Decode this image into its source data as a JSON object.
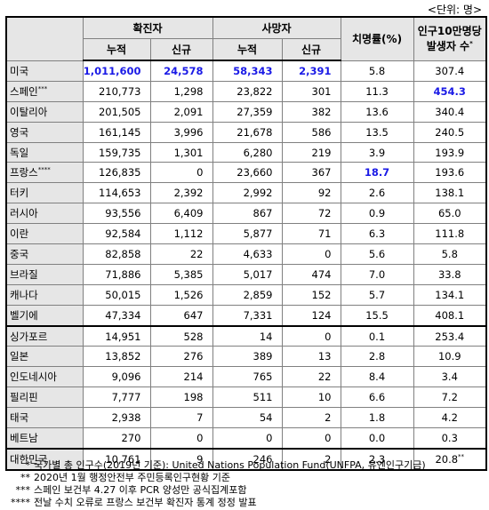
{
  "unit_label": "<단위: 명>",
  "headers": {
    "country": "",
    "confirmed": "확진자",
    "deaths": "사망자",
    "cfr": "치명률(%)",
    "per100k_line1": "인구10만명당",
    "per100k_line2": "발생자 수",
    "per100k_mark": "*",
    "cumulative": "누적",
    "new": "신규"
  },
  "rows": [
    {
      "country": "미국",
      "mark": "",
      "conf_cum": "1,011,600",
      "conf_new": "24,578",
      "death_cum": "58,343",
      "death_new": "2,391",
      "cfr": "5.8",
      "per100k": "307.4",
      "per100k_mark": ""
    },
    {
      "country": "스페인",
      "mark": "***",
      "conf_cum": "210,773",
      "conf_new": "1,298",
      "death_cum": "23,822",
      "death_new": "301",
      "cfr": "11.3",
      "per100k": "454.3",
      "per100k_mark": ""
    },
    {
      "country": "이탈리아",
      "mark": "",
      "conf_cum": "201,505",
      "conf_new": "2,091",
      "death_cum": "27,359",
      "death_new": "382",
      "cfr": "13.6",
      "per100k": "340.4",
      "per100k_mark": ""
    },
    {
      "country": "영국",
      "mark": "",
      "conf_cum": "161,145",
      "conf_new": "3,996",
      "death_cum": "21,678",
      "death_new": "586",
      "cfr": "13.5",
      "per100k": "240.5",
      "per100k_mark": ""
    },
    {
      "country": "독일",
      "mark": "",
      "conf_cum": "159,735",
      "conf_new": "1,301",
      "death_cum": "6,280",
      "death_new": "219",
      "cfr": "3.9",
      "per100k": "193.9",
      "per100k_mark": ""
    },
    {
      "country": "프랑스",
      "mark": "****",
      "conf_cum": "126,835",
      "conf_new": "0",
      "death_cum": "23,660",
      "death_new": "367",
      "cfr": "18.7",
      "per100k": "193.6",
      "per100k_mark": ""
    },
    {
      "country": "터키",
      "mark": "",
      "conf_cum": "114,653",
      "conf_new": "2,392",
      "death_cum": "2,992",
      "death_new": "92",
      "cfr": "2.6",
      "per100k": "138.1",
      "per100k_mark": ""
    },
    {
      "country": "러시아",
      "mark": "",
      "conf_cum": "93,556",
      "conf_new": "6,409",
      "death_cum": "867",
      "death_new": "72",
      "cfr": "0.9",
      "per100k": "65.0",
      "per100k_mark": ""
    },
    {
      "country": "이란",
      "mark": "",
      "conf_cum": "92,584",
      "conf_new": "1,112",
      "death_cum": "5,877",
      "death_new": "71",
      "cfr": "6.3",
      "per100k": "111.8",
      "per100k_mark": ""
    },
    {
      "country": "중국",
      "mark": "",
      "conf_cum": "82,858",
      "conf_new": "22",
      "death_cum": "4,633",
      "death_new": "0",
      "cfr": "5.6",
      "per100k": "5.8",
      "per100k_mark": ""
    },
    {
      "country": "브라질",
      "mark": "",
      "conf_cum": "71,886",
      "conf_new": "5,385",
      "death_cum": "5,017",
      "death_new": "474",
      "cfr": "7.0",
      "per100k": "33.8",
      "per100k_mark": ""
    },
    {
      "country": "캐나다",
      "mark": "",
      "conf_cum": "50,015",
      "conf_new": "1,526",
      "death_cum": "2,859",
      "death_new": "152",
      "cfr": "5.7",
      "per100k": "134.1",
      "per100k_mark": ""
    },
    {
      "country": "벨기에",
      "mark": "",
      "conf_cum": "47,334",
      "conf_new": "647",
      "death_cum": "7,331",
      "death_new": "124",
      "cfr": "15.5",
      "per100k": "408.1",
      "per100k_mark": ""
    },
    {
      "country": "싱가포르",
      "mark": "",
      "conf_cum": "14,951",
      "conf_new": "528",
      "death_cum": "14",
      "death_new": "0",
      "cfr": "0.1",
      "per100k": "253.4",
      "per100k_mark": ""
    },
    {
      "country": "일본",
      "mark": "",
      "conf_cum": "13,852",
      "conf_new": "276",
      "death_cum": "389",
      "death_new": "13",
      "cfr": "2.8",
      "per100k": "10.9",
      "per100k_mark": ""
    },
    {
      "country": "인도네시아",
      "mark": "",
      "conf_cum": "9,096",
      "conf_new": "214",
      "death_cum": "765",
      "death_new": "22",
      "cfr": "8.4",
      "per100k": "3.4",
      "per100k_mark": ""
    },
    {
      "country": "필리핀",
      "mark": "",
      "conf_cum": "7,777",
      "conf_new": "198",
      "death_cum": "511",
      "death_new": "10",
      "cfr": "6.6",
      "per100k": "7.2",
      "per100k_mark": ""
    },
    {
      "country": "태국",
      "mark": "",
      "conf_cum": "2,938",
      "conf_new": "7",
      "death_cum": "54",
      "death_new": "2",
      "cfr": "1.8",
      "per100k": "4.2",
      "per100k_mark": ""
    },
    {
      "country": "베트남",
      "mark": "",
      "conf_cum": "270",
      "conf_new": "0",
      "death_cum": "0",
      "death_new": "0",
      "cfr": "0.0",
      "per100k": "0.3",
      "per100k_mark": ""
    },
    {
      "country": "대한민국",
      "mark": "",
      "conf_cum": "10,761",
      "conf_new": "9",
      "death_cum": "246",
      "death_new": "2",
      "cfr": "2.3",
      "per100k": "20.8",
      "per100k_mark": "**"
    }
  ],
  "highlight_color": "#1a1ae6",
  "notes": [
    {
      "mark": "*",
      "text": "국가별 총 인구수(2019년 기준): United Nations Population Fund(UNFPA, 유엔인구기금)"
    },
    {
      "mark": "**",
      "text": "2020년 1월 행정안전부 주민등록인구현황 기준"
    },
    {
      "mark": "***",
      "text": "스페인 보건부 4.27 이후 PCR 양성만 공식집계포함"
    },
    {
      "mark": "****",
      "text": "전날 수치 오류로 프랑스 보건부 확진자 통계 정정 발표"
    }
  ]
}
